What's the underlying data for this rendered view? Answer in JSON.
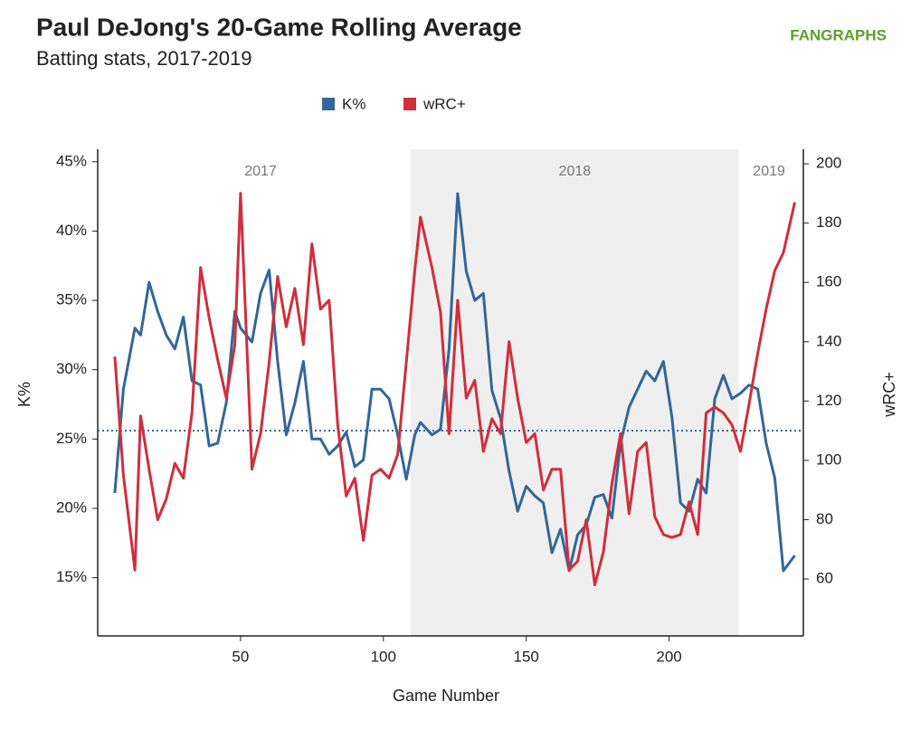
{
  "chart_data": {
    "type": "line",
    "title": "Paul DeJong's 20-Game Rolling Average",
    "subtitle": "Batting stats, 2017-2019",
    "brand": "FANGRAPHS",
    "x_label": "Game Number",
    "y_label": "K%",
    "y2_label": "wRC+",
    "xlim": [
      0,
      247
    ],
    "xticks": [
      50,
      100,
      150,
      200
    ],
    "ylim": [
      10.8,
      45.9
    ],
    "yticks": [
      {
        "value": 15,
        "label": "15%"
      },
      {
        "value": 20,
        "label": "20%"
      },
      {
        "value": 25,
        "label": "25%"
      },
      {
        "value": 30,
        "label": "30%"
      },
      {
        "value": 35,
        "label": "35%"
      },
      {
        "value": 40,
        "label": "40%"
      },
      {
        "value": 45,
        "label": "45%"
      }
    ],
    "y2lim": [
      40.8,
      204.9
    ],
    "y2ticks": [
      60,
      80,
      100,
      120,
      140,
      160,
      180,
      200
    ],
    "reference_line": {
      "value": 25.6,
      "color": "#336699"
    },
    "shaded_region": {
      "x": [
        109.5,
        224.4
      ],
      "label": "2018",
      "label_x": 167,
      "color": "#efefef"
    },
    "season_labels": [
      {
        "label": "2017",
        "x": 57
      },
      {
        "label": "2019",
        "x": 235
      }
    ],
    "legend": "top",
    "x": [
      6,
      9,
      13,
      15,
      18,
      21,
      24,
      27,
      30,
      33,
      36,
      39,
      42,
      45,
      48,
      50,
      54,
      57,
      60,
      63,
      66,
      69,
      72,
      75,
      78,
      81,
      84,
      87,
      90,
      93,
      96,
      99,
      102,
      105,
      108,
      111,
      113,
      117,
      120,
      123,
      126,
      129,
      132,
      135,
      138,
      141,
      144,
      147,
      150,
      153,
      156,
      159,
      162,
      165,
      168,
      171,
      174,
      177,
      180,
      183,
      186,
      189,
      192,
      195,
      198,
      201,
      204,
      207,
      210,
      213,
      216,
      219,
      222,
      225,
      228,
      231,
      234,
      237,
      240,
      244
    ],
    "series": [
      {
        "name": "K%",
        "color": "#336699",
        "values": [
          21.1,
          28.6,
          33,
          32.5,
          36.3,
          34.2,
          32.5,
          31.5,
          33.8,
          29.2,
          28.9,
          24.5,
          24.7,
          27.6,
          34.2,
          33,
          32,
          35.5,
          37.2,
          30.6,
          25.3,
          27.6,
          30.6,
          25,
          25,
          23.9,
          24.5,
          25.5,
          23,
          23.5,
          28.6,
          28.6,
          27.9,
          25.3,
          22.1,
          25.3,
          26.2,
          25.3,
          25.7,
          31.5,
          42.7,
          37.1,
          35,
          35.5,
          28.5,
          26.5,
          22.7,
          19.8,
          21.6,
          20.9,
          20.4,
          16.8,
          18.5,
          15.5,
          18.1,
          18.8,
          20.8,
          21,
          19.3,
          24.7,
          27.3,
          28.6,
          29.9,
          29.2,
          30.6,
          26.6,
          20.4,
          19.8,
          22.1,
          21.1,
          27.9,
          29.6,
          27.9,
          28.3,
          28.9,
          28.6,
          24.7,
          22.2,
          15.5,
          16.6
        ]
      },
      {
        "name": "wRC+",
        "color": "#d22d3b",
        "axis": "y2",
        "values": [
          135,
          95,
          63,
          115,
          97,
          80,
          87,
          99,
          94,
          116,
          165,
          148,
          134,
          121,
          139,
          190,
          97,
          109,
          133,
          162,
          145,
          158,
          139,
          173,
          151,
          154,
          112,
          88,
          94,
          73,
          95,
          97,
          94,
          102,
          133,
          164,
          182,
          165,
          150,
          109,
          154,
          121,
          127,
          103,
          114,
          109,
          140,
          121,
          106,
          109,
          90,
          97,
          97,
          63,
          66,
          80,
          58,
          69,
          92,
          109,
          82,
          103,
          106,
          81,
          75,
          74,
          75,
          86,
          75,
          116,
          118,
          116,
          112,
          103,
          119,
          136,
          151,
          164,
          170,
          187
        ]
      }
    ]
  }
}
